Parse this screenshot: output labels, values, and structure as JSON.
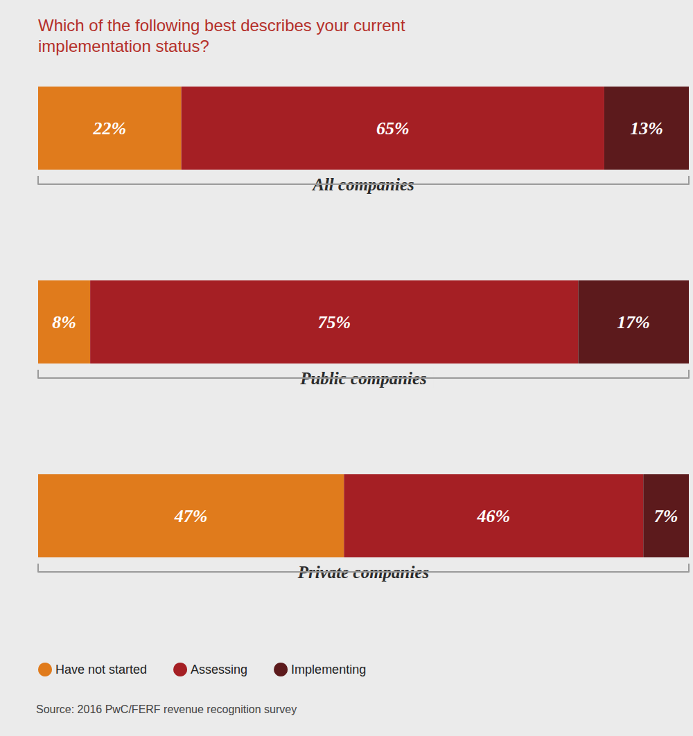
{
  "chart_data": {
    "type": "bar",
    "title": "Which of the following best describes your current implementation status?",
    "orientation": "horizontal",
    "stacked": true,
    "data_labels": true,
    "tick_labels": false,
    "grid": false,
    "legend": "bottom-left",
    "xlim": [
      0,
      100
    ],
    "categories": [
      "All companies",
      "Public companies",
      "Private companies"
    ],
    "series": [
      {
        "name": "Have not started",
        "color": "#e07b1c",
        "values": [
          22,
          8,
          47
        ],
        "value_labels": [
          "22%",
          "8%",
          "47%"
        ]
      },
      {
        "name": "Assessing",
        "color": "#a51f24",
        "values": [
          65,
          75,
          46
        ],
        "value_labels": [
          "65%",
          "75%",
          "46%"
        ]
      },
      {
        "name": "Implementing",
        "color": "#5c1a1c",
        "values": [
          13,
          17,
          7
        ],
        "value_labels": [
          "13%",
          "17%",
          "7%"
        ]
      }
    ],
    "source": "Source: 2016 PwC/FERF revenue recognition survey"
  }
}
